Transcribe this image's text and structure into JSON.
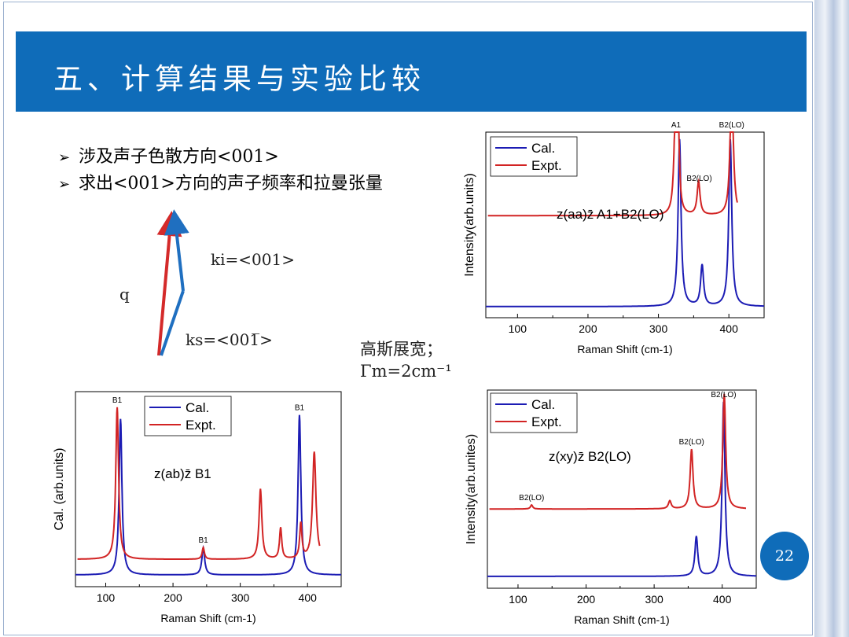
{
  "slide": {
    "title": "五、计算结果与实验比较",
    "bullets": [
      "涉及声子色散方向<001>",
      "求出<001>方向的声子频率和拉曼张量"
    ],
    "bullet_marker": "➢",
    "page_number": "22",
    "accent_color": "#0f6cb9",
    "diagram": {
      "ki_label": "ki=<001>",
      "q_label": "q",
      "ks_label": "ks=<001̅>"
    },
    "note": {
      "line1": "高斯展宽；",
      "line2": "Γm=2cm⁻¹"
    }
  },
  "chart_data": [
    {
      "type": "line",
      "id": "top-right",
      "xlabel": "Raman Shift (cm-1)",
      "ylabel": "Intensity(arb.units)",
      "xlim": [
        55,
        450
      ],
      "xticks": [
        100,
        200,
        300,
        400
      ],
      "annotation": "z(aa)z̄   A1+B2(LO)",
      "legend_position": "top-left",
      "peak_labels": [
        {
          "text": "B2(LO)",
          "x": 404
        },
        {
          "text": "A1",
          "x": 325
        },
        {
          "text": "B2(LO)",
          "x": 358
        }
      ],
      "series": [
        {
          "name": "Cal.",
          "color": "#1c1cb4",
          "baseline": 0.06,
          "peaks": [
            {
              "x": 330,
              "h": 0.9,
              "w": 2.5
            },
            {
              "x": 362,
              "h": 0.22,
              "w": 2.5
            },
            {
              "x": 402,
              "h": 0.9,
              "w": 2.5
            }
          ],
          "x_range": [
            55,
            450
          ]
        },
        {
          "name": "Expt.",
          "color": "#d22424",
          "baseline": 0.55,
          "peaks": [
            {
              "x": 324,
              "h": 0.48,
              "w": 2.5
            },
            {
              "x": 328,
              "h": 0.44,
              "w": 2.0
            },
            {
              "x": 357,
              "h": 0.18,
              "w": 2.5
            },
            {
              "x": 404,
              "h": 0.78,
              "w": 2.5
            }
          ],
          "x_range": [
            58,
            412
          ]
        }
      ]
    },
    {
      "type": "line",
      "id": "bottom-left",
      "xlabel": "Raman Shift (cm-1)",
      "ylabel": "Cal. (arb.units)",
      "xlim": [
        55,
        450
      ],
      "xticks": [
        100,
        200,
        300,
        400
      ],
      "annotation": "z(ab)z̄   B1",
      "legend_position": "top-center",
      "peak_labels": [
        {
          "text": "B1",
          "x": 117
        },
        {
          "text": "B1",
          "x": 245
        },
        {
          "text": "B1",
          "x": 388
        }
      ],
      "series": [
        {
          "name": "Cal.",
          "color": "#1c1cb4",
          "baseline": 0.06,
          "peaks": [
            {
              "x": 122,
              "h": 0.8,
              "w": 2.5
            },
            {
              "x": 245,
              "h": 0.14,
              "w": 2.5
            },
            {
              "x": 388,
              "h": 0.82,
              "w": 2.5
            }
          ],
          "x_range": [
            55,
            450
          ]
        },
        {
          "name": "Expt.",
          "color": "#d22424",
          "baseline": 0.14,
          "peaks": [
            {
              "x": 117,
              "h": 0.78,
              "w": 2.5
            },
            {
              "x": 245,
              "h": 0.06,
              "w": 2.0
            },
            {
              "x": 330,
              "h": 0.36,
              "w": 2.5
            },
            {
              "x": 360,
              "h": 0.16,
              "w": 2.0
            },
            {
              "x": 390,
              "h": 0.18,
              "w": 2.0
            },
            {
              "x": 410,
              "h": 0.55,
              "w": 3.0
            }
          ],
          "x_range": [
            58,
            418
          ]
        }
      ]
    },
    {
      "type": "line",
      "id": "bottom-right",
      "xlabel": "Raman Shift (cm-1)",
      "ylabel": "Intensity(arb.unites)",
      "xlim": [
        55,
        450
      ],
      "xticks": [
        100,
        200,
        300,
        400
      ],
      "annotation": "z(xy)z̄   B2(LO)",
      "legend_position": "top-left",
      "peak_labels": [
        {
          "text": "B2(LO)",
          "x": 402
        },
        {
          "text": "B2(LO)",
          "x": 355
        },
        {
          "text": "B2(LO)",
          "x": 120
        }
      ],
      "series": [
        {
          "name": "Cal.",
          "color": "#1c1cb4",
          "baseline": 0.06,
          "peaks": [
            {
              "x": 362,
              "h": 0.2,
              "w": 2.5
            },
            {
              "x": 402,
              "h": 0.88,
              "w": 2.5
            }
          ],
          "x_range": [
            55,
            450
          ]
        },
        {
          "name": "Expt.",
          "color": "#d22424",
          "baseline": 0.4,
          "peaks": [
            {
              "x": 120,
              "h": 0.02,
              "w": 2.0
            },
            {
              "x": 323,
              "h": 0.04,
              "w": 2.5
            },
            {
              "x": 355,
              "h": 0.3,
              "w": 2.5
            },
            {
              "x": 403,
              "h": 0.58,
              "w": 2.5
            }
          ],
          "x_range": [
            58,
            435
          ]
        }
      ]
    }
  ]
}
